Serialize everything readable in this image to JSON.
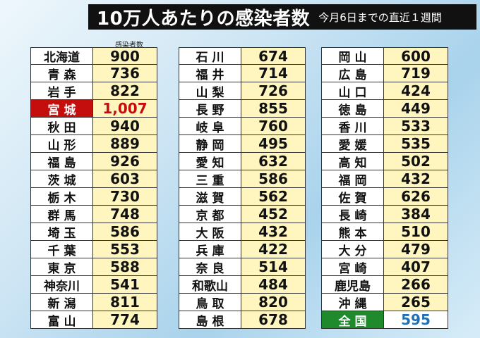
{
  "title": {
    "main": "10万人あたりの感染者数",
    "sub": "今月6日までの直近１週間"
  },
  "column_header": "感染者数",
  "columns": [
    [
      {
        "pref": "北海道",
        "value": "900"
      },
      {
        "pref": "青森",
        "value": "736"
      },
      {
        "pref": "岩手",
        "value": "822"
      },
      {
        "pref": "宮城",
        "value": "1,007",
        "highlight": "red"
      },
      {
        "pref": "秋田",
        "value": "940"
      },
      {
        "pref": "山形",
        "value": "889"
      },
      {
        "pref": "福島",
        "value": "926"
      },
      {
        "pref": "茨城",
        "value": "603"
      },
      {
        "pref": "栃木",
        "value": "730"
      },
      {
        "pref": "群馬",
        "value": "748"
      },
      {
        "pref": "埼玉",
        "value": "586"
      },
      {
        "pref": "千葉",
        "value": "553"
      },
      {
        "pref": "東京",
        "value": "588"
      },
      {
        "pref": "神奈川",
        "value": "541"
      },
      {
        "pref": "新潟",
        "value": "811"
      },
      {
        "pref": "富山",
        "value": "774"
      }
    ],
    [
      {
        "pref": "石川",
        "value": "674"
      },
      {
        "pref": "福井",
        "value": "714"
      },
      {
        "pref": "山梨",
        "value": "726"
      },
      {
        "pref": "長野",
        "value": "855"
      },
      {
        "pref": "岐阜",
        "value": "760"
      },
      {
        "pref": "静岡",
        "value": "495"
      },
      {
        "pref": "愛知",
        "value": "632"
      },
      {
        "pref": "三重",
        "value": "586"
      },
      {
        "pref": "滋賀",
        "value": "562"
      },
      {
        "pref": "京都",
        "value": "452"
      },
      {
        "pref": "大阪",
        "value": "432"
      },
      {
        "pref": "兵庫",
        "value": "422"
      },
      {
        "pref": "奈良",
        "value": "514"
      },
      {
        "pref": "和歌山",
        "value": "484"
      },
      {
        "pref": "鳥取",
        "value": "820"
      },
      {
        "pref": "島根",
        "value": "678"
      }
    ],
    [
      {
        "pref": "岡山",
        "value": "600"
      },
      {
        "pref": "広島",
        "value": "719"
      },
      {
        "pref": "山口",
        "value": "424"
      },
      {
        "pref": "徳島",
        "value": "449"
      },
      {
        "pref": "香川",
        "value": "533"
      },
      {
        "pref": "愛媛",
        "value": "535"
      },
      {
        "pref": "高知",
        "value": "502"
      },
      {
        "pref": "福岡",
        "value": "432"
      },
      {
        "pref": "佐賀",
        "value": "626"
      },
      {
        "pref": "長崎",
        "value": "384"
      },
      {
        "pref": "熊本",
        "value": "510"
      },
      {
        "pref": "大分",
        "value": "479"
      },
      {
        "pref": "宮崎",
        "value": "407"
      },
      {
        "pref": "鹿児島",
        "value": "266"
      },
      {
        "pref": "沖縄",
        "value": "265"
      },
      {
        "pref": "全国",
        "value": "595",
        "highlight": "green"
      }
    ]
  ],
  "colors": {
    "highlight_red": "#c40d0d",
    "highlight_green": "#1e8a2c",
    "national_value": "#1f6fb4",
    "value_cell_bg": "#fff6bf"
  }
}
